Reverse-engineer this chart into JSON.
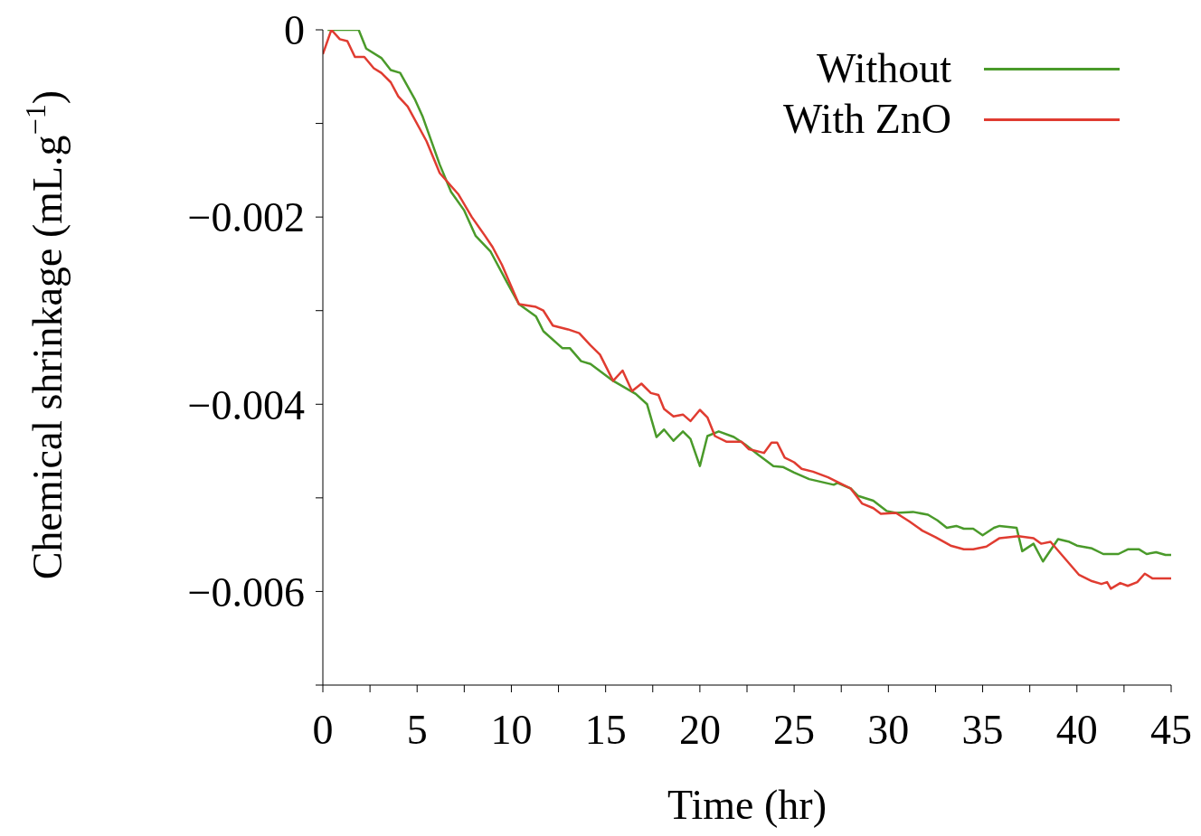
{
  "chart_data": {
    "type": "line",
    "xlabel": "Time (hr)",
    "ylabel": "Chemical shrinkage (mL.g$^{−1}$)",
    "xlim": [
      0,
      45
    ],
    "ylim": [
      -0.007,
      0
    ],
    "xticks": [
      0,
      {
        "value": 2.5,
        "label": null
      },
      5,
      {
        "value": 7.5,
        "label": null
      },
      10,
      {
        "value": 12.5,
        "label": null
      },
      15,
      {
        "value": 17.5,
        "label": null
      },
      20,
      {
        "value": 22.5,
        "label": null
      },
      25,
      {
        "value": 27.5,
        "label": null
      },
      30,
      {
        "value": 32.5,
        "label": null
      },
      35,
      {
        "value": 37.5,
        "label": null
      },
      40,
      {
        "value": 42.5,
        "label": null
      },
      45
    ],
    "yticks": [
      {
        "value": 0,
        "label": "0"
      },
      {
        "value": -0.001,
        "label": null
      },
      {
        "value": -0.002,
        "label": "−0.002"
      },
      {
        "value": -0.003,
        "label": null
      },
      {
        "value": -0.004,
        "label": "−0.004"
      },
      {
        "value": -0.005,
        "label": null
      },
      {
        "value": -0.006,
        "label": "−0.006"
      },
      {
        "value": -0.007,
        "label": null
      }
    ],
    "grid": false,
    "legend": "top right",
    "marker": "none",
    "line_style": "solid",
    "series": [
      {
        "name": "Without",
        "color": "#4a9a2a",
        "x": [
          0.25,
          1.0,
          1.9,
          2.3,
          3.1,
          3.6,
          4.1,
          4.9,
          5.3,
          6.2,
          6.8,
          7.5,
          8.1,
          8.9,
          9.8,
          10.4,
          11.3,
          11.7,
          12.7,
          13.1,
          13.7,
          14.2,
          15.4,
          16.6,
          17.2,
          17.7,
          18.1,
          18.6,
          19.1,
          19.5,
          20.0,
          20.4,
          21.0,
          21.8,
          22.4,
          23.1,
          23.9,
          24.4,
          25.0,
          25.8,
          27.1,
          27.3,
          28.0,
          28.4,
          29.2,
          29.9,
          30.4,
          31.3,
          32.1,
          32.6,
          33.1,
          33.6,
          34.0,
          34.5,
          35.0,
          35.6,
          35.9,
          36.8,
          37.1,
          37.7,
          38.2,
          39.0,
          39.6,
          40.0,
          40.8,
          41.4,
          42.2,
          42.7,
          43.3,
          43.7,
          44.2,
          44.7,
          45.0
        ],
        "values": [
          0,
          0,
          0,
          -0.0002,
          -0.0003,
          -0.00043,
          -0.00046,
          -0.00075,
          -0.00093,
          -0.00144,
          -0.00173,
          -0.00193,
          -0.0022,
          -0.00237,
          -0.00271,
          -0.00293,
          -0.00306,
          -0.00322,
          -0.0034,
          -0.0034,
          -0.00354,
          -0.00357,
          -0.00375,
          -0.00389,
          -0.004,
          -0.00435,
          -0.00427,
          -0.00439,
          -0.00429,
          -0.00437,
          -0.00466,
          -0.00434,
          -0.00429,
          -0.00435,
          -0.00443,
          -0.00454,
          -0.00466,
          -0.00467,
          -0.00473,
          -0.0048,
          -0.00486,
          -0.00484,
          -0.0049,
          -0.00498,
          -0.00503,
          -0.00514,
          -0.00516,
          -0.00515,
          -0.00518,
          -0.00524,
          -0.00532,
          -0.0053,
          -0.00533,
          -0.00533,
          -0.0054,
          -0.00532,
          -0.0053,
          -0.00532,
          -0.00557,
          -0.00549,
          -0.00568,
          -0.00544,
          -0.00547,
          -0.00551,
          -0.00554,
          -0.0056,
          -0.0056,
          -0.00555,
          -0.00555,
          -0.0056,
          -0.00558,
          -0.00561,
          -0.00561
        ]
      },
      {
        "name": "With ZnO",
        "color": "#e03c31",
        "x": [
          0,
          0.45,
          0.9,
          1.3,
          1.7,
          2.2,
          2.7,
          3.1,
          3.6,
          4.0,
          4.5,
          5.5,
          6.2,
          7.2,
          7.9,
          8.6,
          9.0,
          9.5,
          10.4,
          11.3,
          11.7,
          12.2,
          13.0,
          13.6,
          14.2,
          14.7,
          15.4,
          15.9,
          16.4,
          16.9,
          17.4,
          17.8,
          18.1,
          18.6,
          19.1,
          19.5,
          20.0,
          20.4,
          20.8,
          21.4,
          22.2,
          22.6,
          23.4,
          23.8,
          24.1,
          24.5,
          25.0,
          25.4,
          26.0,
          26.8,
          27.5,
          28.0,
          28.6,
          29.2,
          29.6,
          30.4,
          31.1,
          31.8,
          32.5,
          33.3,
          34.0,
          34.5,
          35.2,
          35.9,
          36.9,
          37.7,
          38.1,
          38.6,
          40.1,
          40.8,
          41.3,
          41.6,
          41.8,
          42.3,
          42.7,
          43.2,
          43.6,
          44.0,
          45.0
        ],
        "values": [
          -0.00026,
          0,
          -0.0001,
          -0.00012,
          -0.00029,
          -0.00029,
          -0.00041,
          -0.00046,
          -0.00056,
          -0.00071,
          -0.00082,
          -0.00119,
          -0.00153,
          -0.00176,
          -0.002,
          -0.0022,
          -0.00232,
          -0.00251,
          -0.00293,
          -0.00296,
          -0.003,
          -0.00316,
          -0.0032,
          -0.00324,
          -0.00337,
          -0.00347,
          -0.00375,
          -0.00364,
          -0.00386,
          -0.00378,
          -0.00388,
          -0.0039,
          -0.00405,
          -0.00413,
          -0.00411,
          -0.00418,
          -0.00406,
          -0.00414,
          -0.00434,
          -0.0044,
          -0.0044,
          -0.00448,
          -0.00452,
          -0.00441,
          -0.00441,
          -0.00457,
          -0.00462,
          -0.00469,
          -0.00472,
          -0.00478,
          -0.00485,
          -0.0049,
          -0.00506,
          -0.00511,
          -0.00517,
          -0.00516,
          -0.00525,
          -0.00535,
          -0.00542,
          -0.00551,
          -0.00555,
          -0.00555,
          -0.00552,
          -0.00543,
          -0.00541,
          -0.00543,
          -0.00549,
          -0.00547,
          -0.00582,
          -0.00589,
          -0.00592,
          -0.0059,
          -0.00597,
          -0.00591,
          -0.00594,
          -0.0059,
          -0.00581,
          -0.00586,
          -0.00586
        ]
      }
    ]
  }
}
